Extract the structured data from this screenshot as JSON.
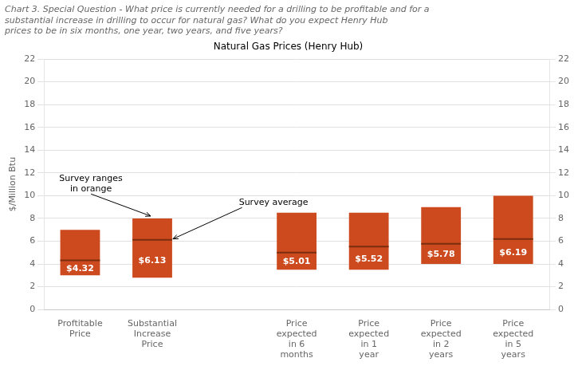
{
  "chart_data": {
    "type": "bar",
    "title": [
      "Chart 3. Special Question - What price is currently needed for a drilling to be profitable and for a",
      "substantial increase in drilling to occur for natural gas? What do you expect Henry Hub",
      "prices to be in six months, one year, two years, and five years?"
    ],
    "subtitle": "Natural Gas Prices (Henry Hub)",
    "ylabel": "$/Million Btu",
    "categories": [
      "Proftitable\nPrice",
      "Substantial\nIncrease\nPrice",
      null,
      "Price\nexpected\nin 6\nmonths",
      "Price\nexpected\nin 1\nyear",
      "Price\nexpected\nin 2\nyears",
      "Price\nexpected\nin 5\nyears"
    ],
    "series": [
      {
        "type": "bar",
        "color": "#cc4a1e",
        "values": [
          [
            3.0,
            7.0
          ],
          [
            2.8,
            8.0
          ],
          null,
          [
            3.5,
            8.5
          ],
          [
            3.5,
            8.5
          ],
          [
            4.0,
            9.0
          ],
          [
            4.0,
            10.0
          ]
        ]
      },
      {
        "type": "line",
        "marker": "line",
        "color": "#7a2e0e",
        "values": [
          4.32,
          6.13,
          null,
          5.01,
          5.52,
          5.78,
          6.19
        ],
        "value_labels": [
          "$4.32",
          "$6.13",
          null,
          "$5.01",
          "$5.52",
          "$5.78",
          "$6.19"
        ],
        "data_labels": true
      }
    ],
    "annotations": [
      {
        "text": "Survey ranges\nin orange"
      },
      {
        "text": "Survey average"
      }
    ],
    "ylim": [
      0,
      22
    ],
    "yticks": [
      0,
      2,
      4,
      6,
      8,
      10,
      12,
      14,
      16,
      18,
      20,
      22
    ],
    "y2lim": [
      0,
      22
    ],
    "y2ticks": [
      0,
      2,
      4,
      6,
      8,
      10,
      12,
      14,
      16,
      18,
      20,
      22
    ],
    "grid": true
  }
}
